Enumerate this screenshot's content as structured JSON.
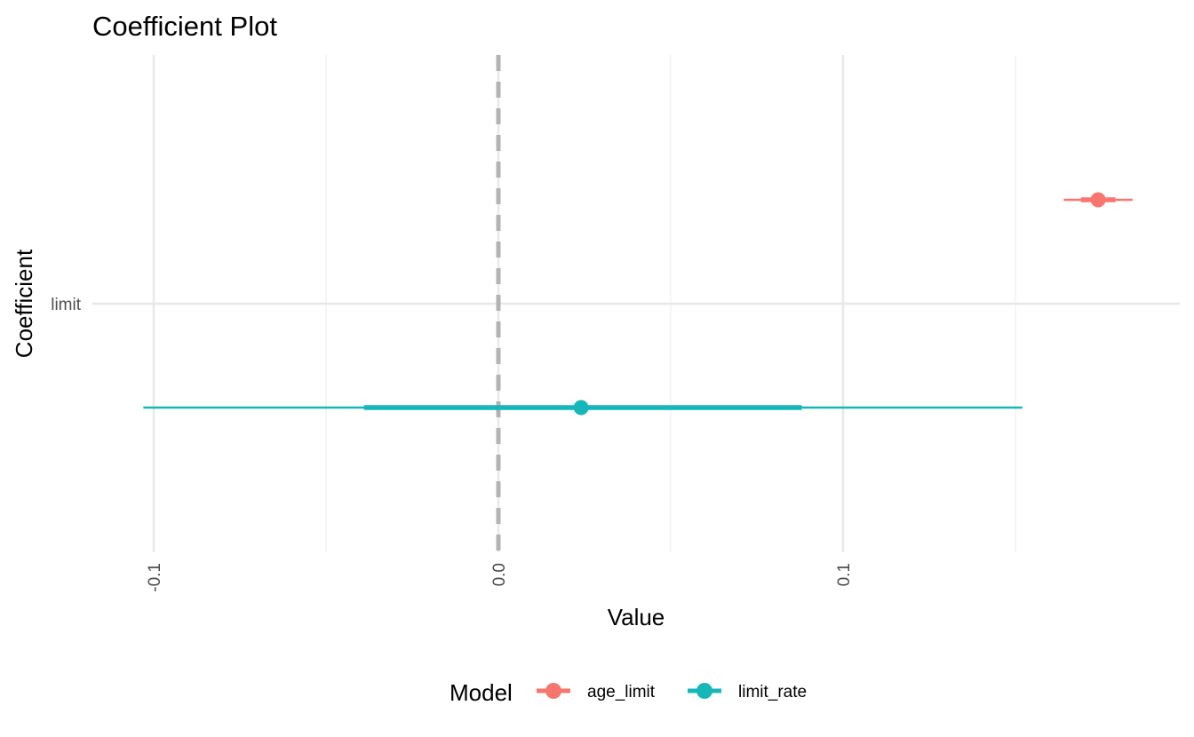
{
  "chart_data": {
    "type": "coefficient-plot",
    "title": "Coefficient Plot",
    "xlabel": "Value",
    "ylabel": "Coefficient",
    "x_ticks": [
      -0.1,
      0.0,
      0.1
    ],
    "x_tick_labels": [
      "-0.1",
      "0.0",
      "0.1"
    ],
    "x_tick_label_rotation": "vertical",
    "xlim": [
      -0.12,
      0.19
    ],
    "y_categories": [
      "limit"
    ],
    "reference_line": {
      "x": 0.0,
      "style": "dashed",
      "color": "#b3b3b3"
    },
    "grid": true,
    "legend": {
      "title": "Model",
      "position": "bottom"
    },
    "series": [
      {
        "name": "age_limit",
        "color": "#F8766D",
        "estimate": 0.174,
        "inner": [
          0.169,
          0.179
        ],
        "outer": [
          0.164,
          0.184
        ],
        "offset": -1
      },
      {
        "name": "limit_rate",
        "color": "#17B6B8",
        "estimate": 0.024,
        "inner": [
          -0.039,
          0.088
        ],
        "outer": [
          -0.103,
          0.152
        ],
        "offset": 1
      }
    ]
  }
}
